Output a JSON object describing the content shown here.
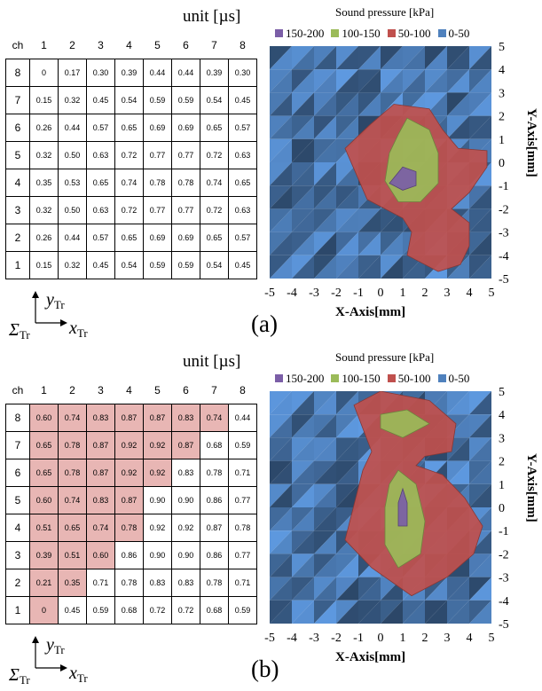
{
  "panels": [
    {
      "tag": "(a)",
      "unit_label": "unit [µs]",
      "table": {
        "corner": "ch",
        "columns": [
          "1",
          "2",
          "3",
          "4",
          "5",
          "6",
          "7",
          "8"
        ],
        "rows": [
          {
            "ch": "8",
            "cells": [
              "0",
              "0.17",
              "0.30",
              "0.39",
              "0.44",
              "0.44",
              "0.39",
              "0.30"
            ]
          },
          {
            "ch": "7",
            "cells": [
              "0.15",
              "0.32",
              "0.45",
              "0.54",
              "0.59",
              "0.59",
              "0.54",
              "0.45"
            ]
          },
          {
            "ch": "6",
            "cells": [
              "0.26",
              "0.44",
              "0.57",
              "0.65",
              "0.69",
              "0.69",
              "0.65",
              "0.57"
            ]
          },
          {
            "ch": "5",
            "cells": [
              "0.32",
              "0.50",
              "0.63",
              "0.72",
              "0.77",
              "0.77",
              "0.72",
              "0.63"
            ]
          },
          {
            "ch": "4",
            "cells": [
              "0.35",
              "0.53",
              "0.65",
              "0.74",
              "0.78",
              "0.78",
              "0.74",
              "0.65"
            ]
          },
          {
            "ch": "3",
            "cells": [
              "0.32",
              "0.50",
              "0.63",
              "0.72",
              "0.77",
              "0.77",
              "0.72",
              "0.63"
            ]
          },
          {
            "ch": "2",
            "cells": [
              "0.26",
              "0.44",
              "0.57",
              "0.65",
              "0.69",
              "0.69",
              "0.65",
              "0.57"
            ]
          },
          {
            "ch": "1",
            "cells": [
              "0.15",
              "0.32",
              "0.45",
              "0.54",
              "0.59",
              "0.59",
              "0.54",
              "0.45"
            ]
          }
        ],
        "highlight": []
      },
      "chart_data": {
        "type": "heatmap",
        "title": "Sound pressure [kPa]",
        "xlabel": "X-Axis[mm]",
        "ylabel": "Y-Axis[mm]",
        "xlim": [
          -5,
          5
        ],
        "ylim": [
          -5,
          5
        ],
        "xticks": [
          "-5",
          "-4",
          "-3",
          "-2",
          "-1",
          "0",
          "1",
          "2",
          "3",
          "4",
          "5"
        ],
        "yticks": [
          "5",
          "4",
          "3",
          "2",
          "1",
          "0",
          "-1",
          "-2",
          "-3",
          "-4",
          "-5"
        ],
        "legend": [
          {
            "label": "150-200",
            "color": "#7b5ea7"
          },
          {
            "label": "100-150",
            "color": "#9bbb59"
          },
          {
            "label": "50-100",
            "color": "#c0504d"
          },
          {
            "label": "0-50",
            "color": "#4f81bd"
          }
        ],
        "regions": [
          {
            "band": "50-100",
            "points": [
              [
                0.6,
                2.5
              ],
              [
                2.2,
                2.3
              ],
              [
                2.8,
                1.4
              ],
              [
                3.5,
                0.6
              ],
              [
                4.8,
                0.5
              ],
              [
                4.8,
                -0.2
              ],
              [
                4.0,
                -1.3
              ],
              [
                3.2,
                -2.0
              ],
              [
                4.0,
                -2.6
              ],
              [
                4.0,
                -3.6
              ],
              [
                3.6,
                -4.4
              ],
              [
                2.6,
                -4.7
              ],
              [
                1.2,
                -4.0
              ],
              [
                1.4,
                -3.0
              ],
              [
                1.0,
                -2.4
              ],
              [
                -0.6,
                -1.6
              ],
              [
                -1.6,
                0.6
              ],
              [
                -0.5,
                1.6
              ]
            ]
          },
          {
            "band": "100-150",
            "points": [
              [
                1.2,
                1.9
              ],
              [
                2.2,
                1.4
              ],
              [
                2.6,
                0.4
              ],
              [
                2.6,
                -0.9
              ],
              [
                1.8,
                -1.7
              ],
              [
                0.8,
                -1.7
              ],
              [
                0.2,
                -0.8
              ],
              [
                0.4,
                0.4
              ],
              [
                0.8,
                1.2
              ]
            ]
          },
          {
            "band": "150-200",
            "points": [
              [
                1.0,
                -0.2
              ],
              [
                1.6,
                -0.4
              ],
              [
                1.6,
                -1.0
              ],
              [
                1.0,
                -1.2
              ],
              [
                0.4,
                -0.9
              ]
            ]
          }
        ]
      }
    },
    {
      "tag": "(b)",
      "unit_label": "unit [µs]",
      "table": {
        "corner": "ch",
        "columns": [
          "1",
          "2",
          "3",
          "4",
          "5",
          "6",
          "7",
          "8"
        ],
        "rows": [
          {
            "ch": "8",
            "cells": [
              "0.60",
              "0.74",
              "0.83",
              "0.87",
              "0.87",
              "0.83",
              "0.74",
              "0.44"
            ]
          },
          {
            "ch": "7",
            "cells": [
              "0.65",
              "0.78",
              "0.87",
              "0.92",
              "0.92",
              "0.87",
              "0.68",
              "0.59"
            ]
          },
          {
            "ch": "6",
            "cells": [
              "0.65",
              "0.78",
              "0.87",
              "0.92",
              "0.92",
              "0.83",
              "0.78",
              "0.71"
            ]
          },
          {
            "ch": "5",
            "cells": [
              "0.60",
              "0.74",
              "0.83",
              "0.87",
              "0.90",
              "0.90",
              "0.86",
              "0.77"
            ]
          },
          {
            "ch": "4",
            "cells": [
              "0.51",
              "0.65",
              "0.74",
              "0.78",
              "0.92",
              "0.92",
              "0.87",
              "0.78"
            ]
          },
          {
            "ch": "3",
            "cells": [
              "0.39",
              "0.51",
              "0.60",
              "0.86",
              "0.90",
              "0.90",
              "0.86",
              "0.77"
            ]
          },
          {
            "ch": "2",
            "cells": [
              "0.21",
              "0.35",
              "0.71",
              "0.78",
              "0.83",
              "0.83",
              "0.78",
              "0.71"
            ]
          },
          {
            "ch": "1",
            "cells": [
              "0",
              "0.45",
              "0.59",
              "0.68",
              "0.72",
              "0.72",
              "0.68",
              "0.59"
            ]
          }
        ],
        "highlight": [
          7,
          6,
          5,
          4,
          3,
          2,
          1,
          0
        ]
      },
      "chart_data": {
        "type": "heatmap",
        "title": "Sound pressure [kPa]",
        "xlabel": "X-Axis[mm]",
        "ylabel": "Y-Axis[mm]",
        "xlim": [
          -5,
          5
        ],
        "ylim": [
          -5,
          5
        ],
        "xticks": [
          "-5",
          "-4",
          "-3",
          "-2",
          "-1",
          "0",
          "1",
          "2",
          "3",
          "4",
          "5"
        ],
        "yticks": [
          "5",
          "4",
          "3",
          "2",
          "1",
          "0",
          "-1",
          "-2",
          "-3",
          "-4",
          "-5"
        ],
        "legend": [
          {
            "label": "150-200",
            "color": "#7b5ea7"
          },
          {
            "label": "100-150",
            "color": "#9bbb59"
          },
          {
            "label": "50-100",
            "color": "#c0504d"
          },
          {
            "label": "0-50",
            "color": "#4f81bd"
          }
        ],
        "regions": [
          {
            "band": "50-100",
            "points": [
              [
                -1.2,
                4.4
              ],
              [
                0.0,
                5.0
              ],
              [
                2.2,
                4.6
              ],
              [
                3.4,
                3.6
              ],
              [
                3.2,
                2.4
              ],
              [
                2.0,
                2.2
              ],
              [
                1.6,
                1.8
              ],
              [
                2.8,
                1.4
              ],
              [
                3.8,
                0.4
              ],
              [
                4.6,
                -0.8
              ],
              [
                4.2,
                -2.0
              ],
              [
                3.0,
                -3.0
              ],
              [
                2.2,
                -3.4
              ],
              [
                1.4,
                -3.8
              ],
              [
                -0.4,
                -2.6
              ],
              [
                -1.6,
                -1.4
              ],
              [
                -0.8,
                1.6
              ],
              [
                -0.4,
                2.4
              ]
            ]
          },
          {
            "band": "100-150",
            "points": [
              [
                0.0,
                4.0
              ],
              [
                1.2,
                4.2
              ],
              [
                2.2,
                3.6
              ],
              [
                1.0,
                3.0
              ],
              [
                0.0,
                3.4
              ]
            ]
          },
          {
            "band": "100-150",
            "points": [
              [
                0.8,
                1.6
              ],
              [
                1.6,
                1.0
              ],
              [
                2.0,
                -0.6
              ],
              [
                1.8,
                -2.0
              ],
              [
                0.8,
                -2.6
              ],
              [
                0.2,
                -1.6
              ],
              [
                0.2,
                0.0
              ],
              [
                0.4,
                1.0
              ]
            ]
          },
          {
            "band": "150-200",
            "points": [
              [
                1.0,
                0.8
              ],
              [
                1.2,
                0.2
              ],
              [
                1.2,
                -0.8
              ],
              [
                0.8,
                -0.8
              ],
              [
                0.8,
                0.2
              ]
            ]
          }
        ]
      }
    }
  ],
  "coord": {
    "sigma": "Σ",
    "sub": "Tr",
    "x": "x",
    "y": "y"
  }
}
